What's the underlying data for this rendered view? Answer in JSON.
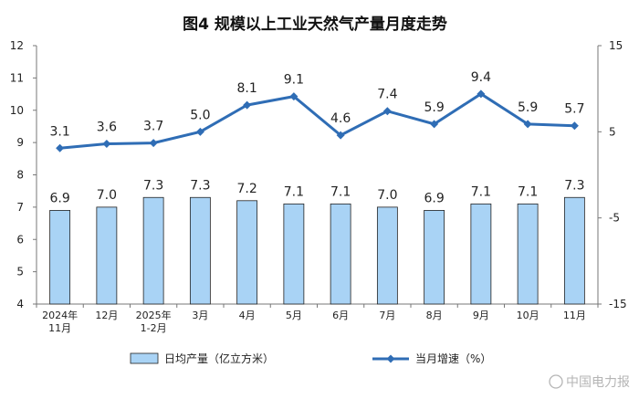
{
  "chart_data": {
    "type": "bar+line",
    "title": "图4  规模以上工业天然气产量月度走势",
    "categories": [
      [
        "2024年",
        "11月"
      ],
      [
        "12月"
      ],
      [
        "2025年",
        "1-2月"
      ],
      [
        "3月"
      ],
      [
        "4月"
      ],
      [
        "5月"
      ],
      [
        "6月"
      ],
      [
        "7月"
      ],
      [
        "8月"
      ],
      [
        "9月"
      ],
      [
        "10月"
      ],
      [
        "11月"
      ]
    ],
    "series": [
      {
        "name": "日均产量（亿立方米）",
        "type": "bar",
        "axis": "left",
        "color": "#a9d3f5",
        "values": [
          6.9,
          7.0,
          7.3,
          7.3,
          7.2,
          7.1,
          7.1,
          7.0,
          6.9,
          7.1,
          7.1,
          7.3
        ],
        "labels": [
          "6.9",
          "7.0",
          "7.3",
          "7.3",
          "7.2",
          "7.1",
          "7.1",
          "7.0",
          "6.9",
          "7.1",
          "7.1",
          "7.3"
        ]
      },
      {
        "name": "当月增速（%）",
        "type": "line",
        "axis": "right",
        "color": "#2f6db5",
        "values": [
          3.1,
          3.6,
          3.7,
          5.0,
          8.1,
          9.1,
          4.6,
          7.4,
          5.9,
          9.4,
          5.9,
          5.7
        ],
        "labels": [
          "3.1",
          "3.6",
          "3.7",
          "5.0",
          "8.1",
          "9.1",
          "4.6",
          "7.4",
          "5.9",
          "9.4",
          "5.9",
          "5.7"
        ]
      }
    ],
    "left_axis": {
      "min": 4,
      "max": 12,
      "ticks": [
        "4",
        "5",
        "6",
        "7",
        "8",
        "9",
        "10",
        "11",
        "12"
      ]
    },
    "right_axis": {
      "min": -15,
      "max": 15,
      "ticks": [
        "-15",
        "-5",
        "5",
        "15"
      ]
    },
    "grid": false,
    "legend_position": "bottom"
  },
  "watermark": "中国电力报"
}
